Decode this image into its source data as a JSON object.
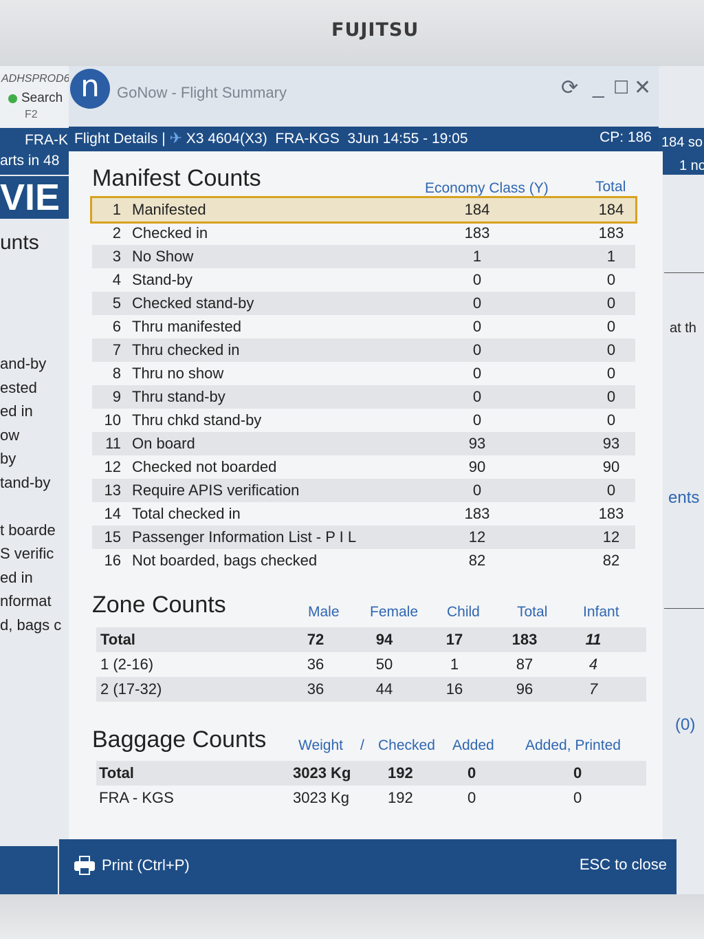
{
  "monitor": {
    "brand": "FUJITSU"
  },
  "background": {
    "host": "ADHSPROD6",
    "status": "Search",
    "key": "F2",
    "band_line1": "FRA-K",
    "band_line2": "arts in 48",
    "big_text": "VIE",
    "heading": "unts",
    "list": [
      "and-by",
      "ested",
      "ed in",
      "ow",
      "by",
      "tand-by",
      "",
      "t boarde",
      "S verific",
      "ed in",
      "nformat",
      "d, bags c"
    ],
    "right_line1": "184 so",
    "right_line2": "1 no",
    "right_text1": "at th",
    "right_text2": "ents",
    "right_text3": "(0)"
  },
  "dialog": {
    "app_title": "GoNow - Flight Summary",
    "logo": "n",
    "icons": {
      "refresh": "refresh-icon",
      "minimize": "minimize-icon",
      "maximize": "maximize-icon",
      "close": "close-icon"
    },
    "flight_bar": {
      "label": "Flight Details |",
      "flight": "X3 4604(X3)",
      "route": "FRA-KGS",
      "time": "3Jun 14:55 - 19:05",
      "cp": "CP: 186"
    },
    "manifest": {
      "title": "Manifest Counts",
      "col1": "Economy Class (Y)",
      "col2": "Total",
      "rows": [
        {
          "num": "1",
          "label": "Manifested",
          "y": "184",
          "total": "184"
        },
        {
          "num": "2",
          "label": "Checked in",
          "y": "183",
          "total": "183"
        },
        {
          "num": "3",
          "label": "No Show",
          "y": "1",
          "total": "1"
        },
        {
          "num": "4",
          "label": "Stand-by",
          "y": "0",
          "total": "0"
        },
        {
          "num": "5",
          "label": "Checked stand-by",
          "y": "0",
          "total": "0"
        },
        {
          "num": "6",
          "label": "Thru manifested",
          "y": "0",
          "total": "0"
        },
        {
          "num": "7",
          "label": "Thru checked in",
          "y": "0",
          "total": "0"
        },
        {
          "num": "8",
          "label": "Thru no show",
          "y": "0",
          "total": "0"
        },
        {
          "num": "9",
          "label": "Thru stand-by",
          "y": "0",
          "total": "0"
        },
        {
          "num": "10",
          "label": "Thru chkd stand-by",
          "y": "0",
          "total": "0"
        },
        {
          "num": "11",
          "label": "On board",
          "y": "93",
          "total": "93"
        },
        {
          "num": "12",
          "label": "Checked not boarded",
          "y": "90",
          "total": "90"
        },
        {
          "num": "13",
          "label": "Require APIS verification",
          "y": "0",
          "total": "0"
        },
        {
          "num": "14",
          "label": "Total checked in",
          "y": "183",
          "total": "183"
        },
        {
          "num": "15",
          "label": "Passenger Information List - P I L",
          "y": "12",
          "total": "12"
        },
        {
          "num": "16",
          "label": "Not boarded, bags checked",
          "y": "82",
          "total": "82"
        }
      ]
    },
    "zones": {
      "title": "Zone Counts",
      "headers": [
        "Male",
        "Female",
        "Child",
        "Total",
        "Infant"
      ],
      "rows": [
        {
          "label": "Total",
          "values": [
            "72",
            "94",
            "17",
            "183",
            "11"
          ]
        },
        {
          "label": "1 (2-16)",
          "values": [
            "36",
            "50",
            "1",
            "87",
            "4"
          ]
        },
        {
          "label": "2 (17-32)",
          "values": [
            "36",
            "44",
            "16",
            "96",
            "7"
          ]
        }
      ]
    },
    "baggage": {
      "title": "Baggage Counts",
      "headers": [
        "Weight",
        "/",
        "Checked",
        "Added",
        "Added, Printed"
      ],
      "rows": [
        {
          "label": "Total",
          "weight": "3023 Kg",
          "checked": "192",
          "added": "0",
          "printed": "0"
        },
        {
          "label": "FRA - KGS",
          "weight": "3023 Kg",
          "checked": "192",
          "added": "0",
          "printed": "0"
        }
      ]
    },
    "footer": {
      "print": "Print (Ctrl+P)",
      "esc": "ESC to close"
    }
  },
  "colors": {
    "accent": "#1e4d86",
    "header_blue": "#2f66b2",
    "selection": "#d8a21f"
  }
}
